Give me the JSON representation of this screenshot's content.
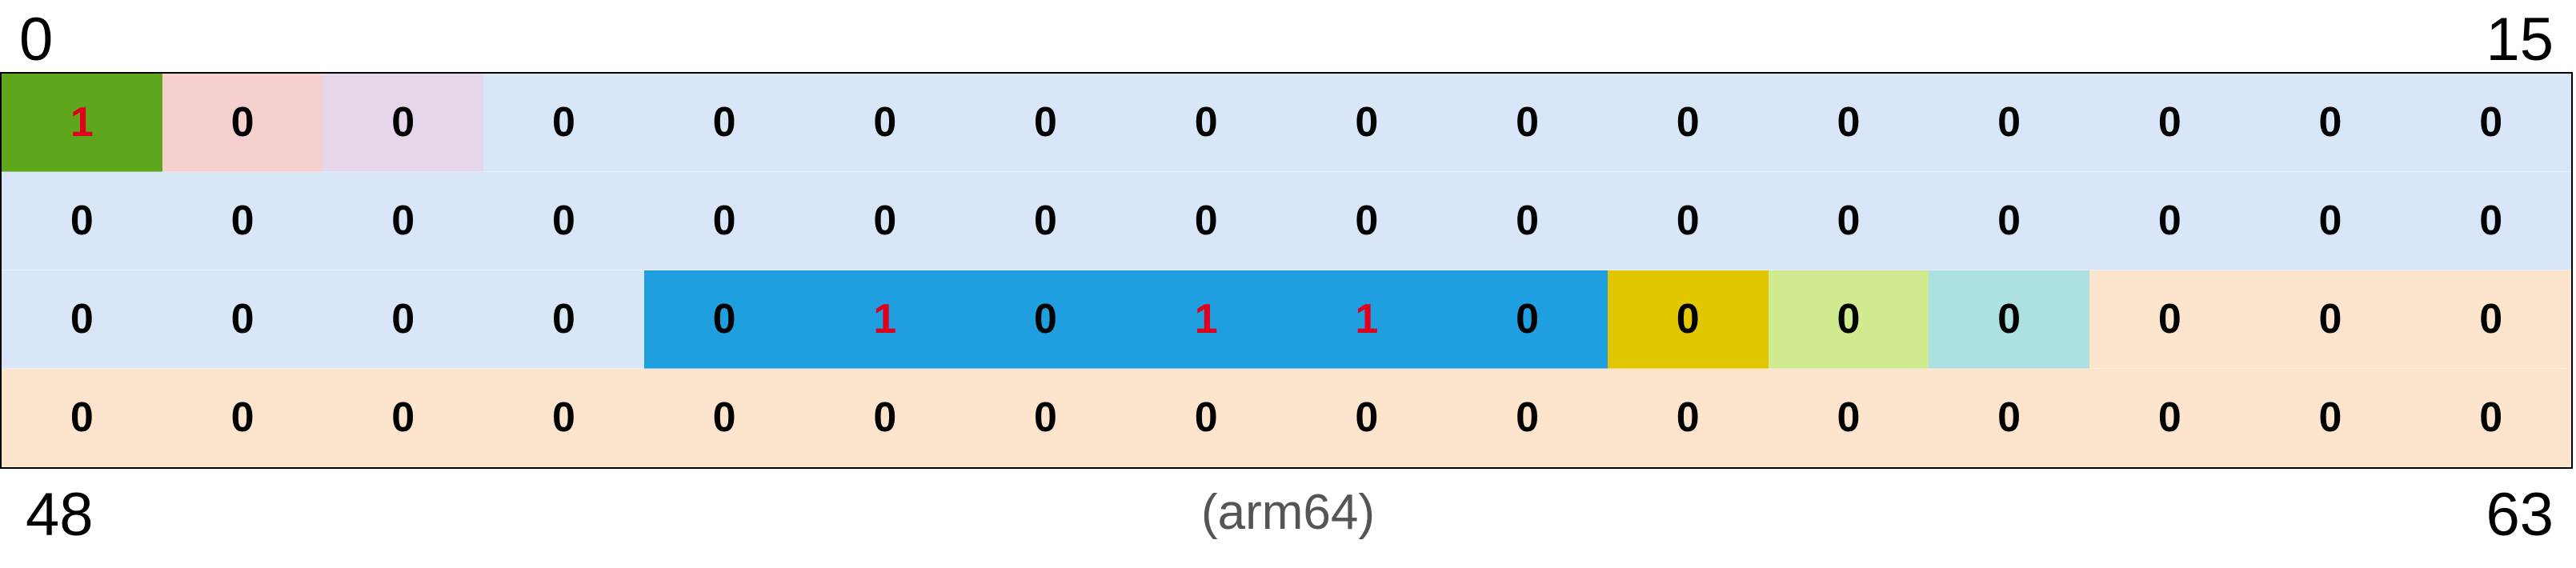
{
  "labels": {
    "top_left": "0",
    "top_right": "15",
    "bottom_left": "48",
    "bottom_right": "63",
    "caption": "(arm64)"
  },
  "colors": {
    "default": "#d9e6f8",
    "green": "#5ea71c",
    "pink": "#f6cfcf",
    "lavender": "#e5d6ea",
    "blue": "#1f9fe0",
    "mustard": "#e2c600",
    "lime": "#cfea8f",
    "aqua": "#ade1e1",
    "peach": "#fde4cc",
    "text_zero": "#000000",
    "text_one": "#e0001b"
  },
  "bits": [
    "1",
    "0",
    "0",
    "0",
    "0",
    "0",
    "0",
    "0",
    "0",
    "0",
    "0",
    "0",
    "0",
    "0",
    "0",
    "0",
    "0",
    "0",
    "0",
    "0",
    "0",
    "0",
    "0",
    "0",
    "0",
    "0",
    "0",
    "0",
    "0",
    "0",
    "0",
    "0",
    "0",
    "0",
    "0",
    "0",
    "0",
    "1",
    "0",
    "1",
    "1",
    "0",
    "0",
    "0",
    "0",
    "0",
    "0",
    "0",
    "0",
    "0",
    "0",
    "0",
    "0",
    "0",
    "0",
    "0",
    "0",
    "0",
    "0",
    "0",
    "0",
    "0",
    "0",
    "0"
  ],
  "cell_colors": [
    "green",
    "pink",
    "lavender",
    "default",
    "default",
    "default",
    "default",
    "default",
    "default",
    "default",
    "default",
    "default",
    "default",
    "default",
    "default",
    "default",
    "default",
    "default",
    "default",
    "default",
    "default",
    "default",
    "default",
    "default",
    "default",
    "default",
    "default",
    "default",
    "default",
    "default",
    "default",
    "default",
    "default",
    "default",
    "default",
    "default",
    "blue",
    "blue",
    "blue",
    "blue",
    "blue",
    "blue",
    "mustard",
    "lime",
    "aqua",
    "peach",
    "peach",
    "peach",
    "peach",
    "peach",
    "peach",
    "peach",
    "peach",
    "peach",
    "peach",
    "peach",
    "peach",
    "peach",
    "peach",
    "peach",
    "peach",
    "peach",
    "peach",
    "peach"
  ]
}
